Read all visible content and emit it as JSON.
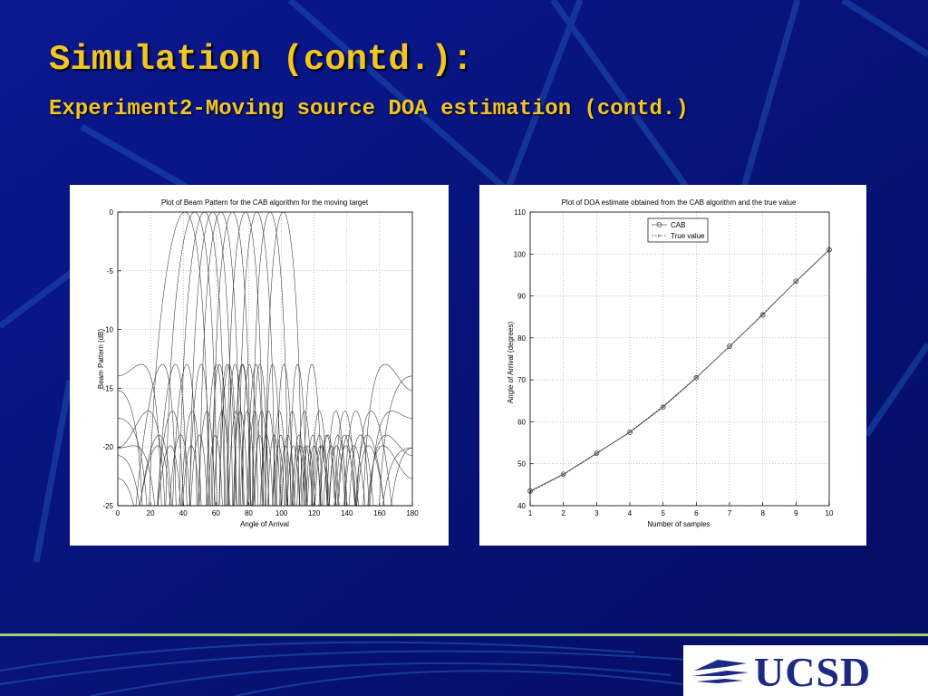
{
  "slide": {
    "title": "Simulation (contd.):",
    "subtitle": "Experiment2-Moving source DOA estimation (contd.)",
    "background_color": "#07107a",
    "title_color": "#f2c526",
    "logo_text": "UCSD"
  },
  "chart_data": [
    {
      "type": "line",
      "title": "Plot of Beam Pattern for the CAB algorithm for the moving target",
      "xlabel": "Angle of Arrival",
      "ylabel": "Beam Pattern (dB)",
      "xlim": [
        0,
        180
      ],
      "ylim": [
        -25,
        0
      ],
      "xticks": [
        0,
        20,
        40,
        60,
        80,
        100,
        120,
        140,
        160,
        180
      ],
      "yticks": [
        0,
        -5,
        -10,
        -15,
        -20,
        -25
      ],
      "grid": true,
      "series_peaks_deg": [
        41,
        47,
        53,
        58,
        63,
        70,
        78,
        85,
        93,
        101
      ]
    },
    {
      "type": "line",
      "title": "Plot of DOA estimate obtained from the CAB algorithm and the true value",
      "xlabel": "Number of samples",
      "ylabel": "Angle of Arrival (degrees)",
      "xlim": [
        1,
        10
      ],
      "ylim": [
        40,
        110
      ],
      "xticks": [
        1,
        2,
        3,
        4,
        5,
        6,
        7,
        8,
        9,
        10
      ],
      "yticks": [
        40,
        50,
        60,
        70,
        80,
        90,
        100,
        110
      ],
      "grid": true,
      "legend_position": "top-center",
      "x": [
        1,
        2,
        3,
        4,
        5,
        6,
        7,
        8,
        9,
        10
      ],
      "series": [
        {
          "name": "CAB",
          "marker": "o",
          "values": [
            43.5,
            47.5,
            52.5,
            57.5,
            63.5,
            70.5,
            78,
            85.5,
            93.5,
            101
          ]
        },
        {
          "name": "True value",
          "marker": "x",
          "values": [
            43.3,
            47.4,
            52.4,
            57.6,
            63.7,
            70.6,
            77.9,
            85.7,
            93.4,
            101
          ]
        }
      ]
    }
  ]
}
